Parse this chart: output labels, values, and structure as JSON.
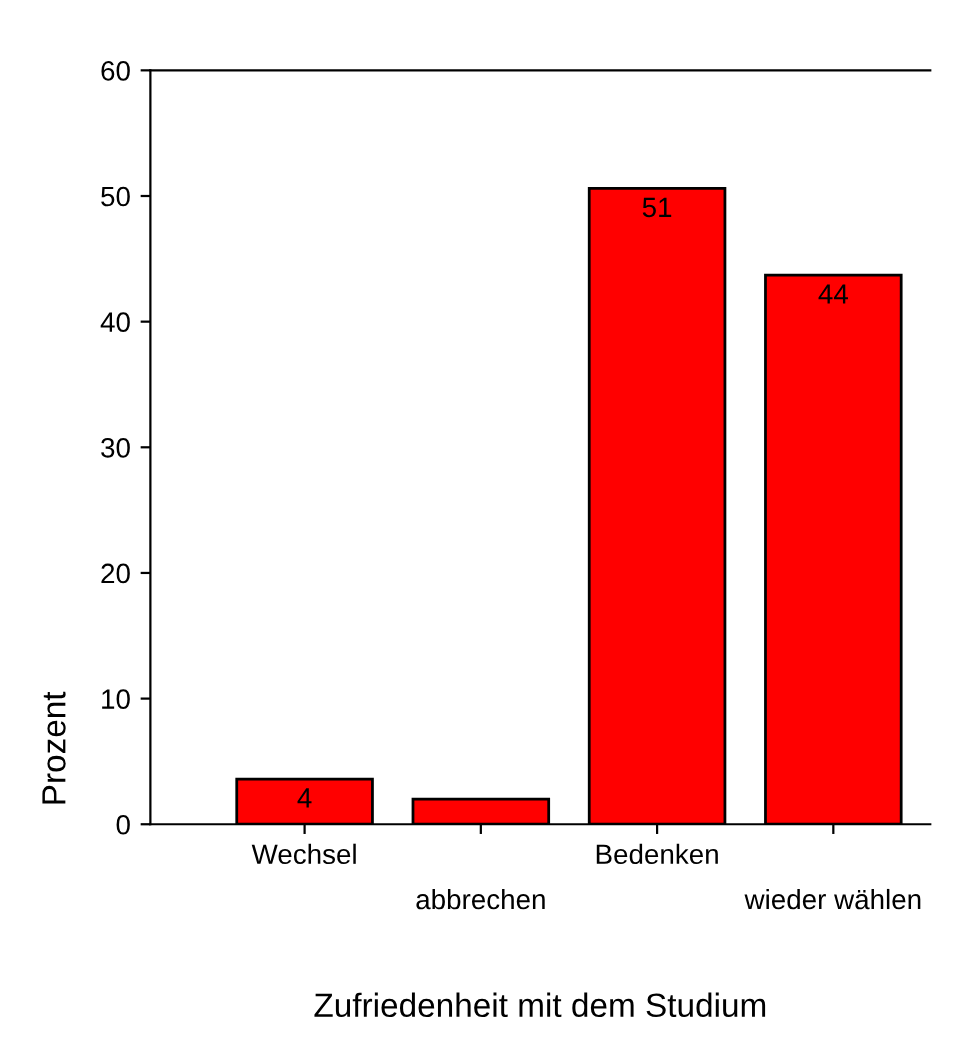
{
  "chart_data": {
    "type": "bar",
    "xlabel": "Zufriedenheit mit dem Studium",
    "ylabel": "Prozent",
    "categories": [
      "Wechsel",
      "abbrechen",
      "Bedenken",
      "wieder wählen"
    ],
    "values": [
      3.6,
      2,
      50.6,
      43.7
    ],
    "value_labels": [
      "4",
      null,
      "51",
      "44"
    ],
    "color": "#ff0000",
    "ylim": [
      0,
      60
    ],
    "yticks": [
      0,
      10,
      20,
      30,
      40,
      50,
      60
    ],
    "grid": false,
    "legend": false
  }
}
